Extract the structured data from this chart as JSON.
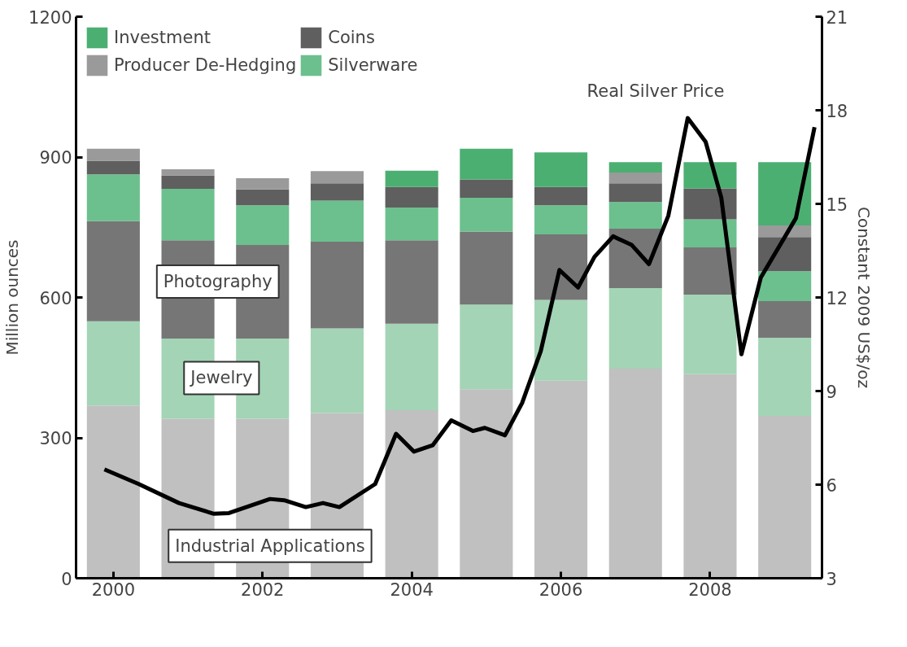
{
  "chart_data": {
    "type": "bar",
    "stacked": true,
    "x": [
      2000,
      2001,
      2002,
      2003,
      2004,
      2005,
      2006,
      2007,
      2008,
      2009
    ],
    "ylabel": "Million ounces",
    "y2label": "Constant 2009 US$/oz",
    "xlim": [
      1999.5,
      2009.5
    ],
    "xticks": [
      2000,
      2002,
      2004,
      2006,
      2008
    ],
    "ylim": [
      0,
      1200
    ],
    "yticks": [
      0,
      300,
      600,
      900,
      1200
    ],
    "y2lim": [
      3,
      21
    ],
    "y2ticks": [
      3,
      6,
      9,
      12,
      15,
      18,
      21
    ],
    "grid": false,
    "legend": "top left",
    "series": [
      {
        "name": "Industrial Applications",
        "color": "#c0c0c0",
        "values": [
          369,
          341,
          341,
          353,
          359,
          404,
          422,
          448,
          436,
          347
        ]
      },
      {
        "name": "Jewelry",
        "color": "#a3d4b5",
        "values": [
          180,
          171,
          171,
          181,
          185,
          181,
          173,
          172,
          170,
          167
        ]
      },
      {
        "name": "Photography",
        "color": "#767676",
        "values": [
          214,
          210,
          200,
          185,
          178,
          156,
          140,
          127,
          101,
          78
        ]
      },
      {
        "name": "Silverware",
        "color": "#6cc08e",
        "values": [
          100,
          110,
          85,
          88,
          70,
          72,
          62,
          57,
          60,
          64
        ]
      },
      {
        "name": "Coins",
        "color": "#5f5f5f",
        "values": [
          29,
          29,
          34,
          37,
          44,
          39,
          39,
          40,
          66,
          73
        ]
      },
      {
        "name": "Producer De-Hedging",
        "color": "#9a9a9a",
        "values": [
          26,
          13,
          24,
          26,
          null,
          null,
          null,
          23,
          null,
          25
        ]
      },
      {
        "name": "Investment",
        "color": "#4caf72",
        "values": [
          null,
          null,
          null,
          null,
          35,
          66,
          74,
          22,
          56,
          135
        ]
      },
      {
        "name": "Real Silver Price",
        "type": "line",
        "axis": "y2",
        "color": "#000000",
        "x": [
          1999.88,
          2000.34,
          2000.88,
          2001.34,
          2001.55,
          2002.1,
          2002.29,
          2002.58,
          2002.81,
          2003.03,
          2003.51,
          2003.79,
          2004.03,
          2004.28,
          2004.53,
          2004.82,
          2004.98,
          2005.25,
          2005.48,
          2005.73,
          2005.98,
          2006.23,
          2006.45,
          2006.7,
          2006.95,
          2007.18,
          2007.44,
          2007.7,
          2007.94,
          2008.15,
          2008.42,
          2008.68,
          2009.15,
          2009.4
        ],
        "values": [
          6.49,
          6.02,
          5.41,
          5.07,
          5.09,
          5.54,
          5.5,
          5.28,
          5.41,
          5.28,
          6.02,
          7.63,
          7.06,
          7.26,
          8.06,
          7.72,
          7.82,
          7.58,
          8.62,
          10.28,
          12.88,
          12.32,
          13.3,
          13.96,
          13.68,
          13.07,
          14.62,
          17.75,
          16.99,
          15.2,
          10.18,
          12.64,
          14.54,
          17.46
        ]
      }
    ]
  }
}
